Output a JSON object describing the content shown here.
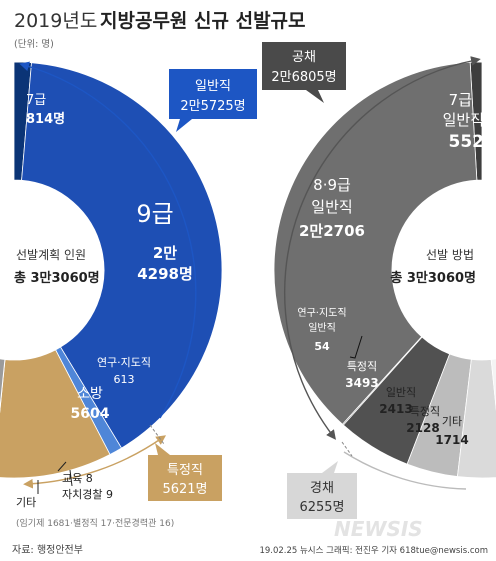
{
  "title": {
    "year": "2019년도",
    "main": "지방공무원 신규 선발규모"
  },
  "unit": "(단위: 명)",
  "left": {
    "center_label": "선발계획 인원",
    "center_total": "총 3만3060명",
    "callout_top": [
      "일반직",
      "2만5725명"
    ],
    "callout_bottom": [
      "특정직",
      "5621명"
    ],
    "labels": {
      "grade7": [
        "7급",
        "814명"
      ],
      "grade9": [
        "9급",
        "2만",
        "4298명"
      ],
      "research": [
        "연구·지도직",
        "613"
      ],
      "fire": [
        "소방",
        "5604"
      ],
      "education": "교육 8",
      "police": "자치경찰 9",
      "other": "기타",
      "other_note": "(임기제 1681·별정직 17·전문경력관 16)"
    }
  },
  "right": {
    "center_label": "선발 방법",
    "center_total": "총 3만3060명",
    "callout_top": [
      "공채",
      "2만6805명"
    ],
    "callout_bottom": [
      "경채",
      "6255명"
    ],
    "labels": {
      "grade7": [
        "7급",
        "일반직",
        "552"
      ],
      "grade89": [
        "8·9급",
        "일반직",
        "2만2706"
      ],
      "research": [
        "연구·지도직",
        "일반직",
        "54"
      ],
      "special": [
        "특정직",
        "3493"
      ],
      "general": [
        "일반직",
        "2413"
      ],
      "special2": [
        "특정직",
        "2128"
      ],
      "other": [
        "기타",
        "1714"
      ]
    }
  },
  "chart_data": [
    {
      "type": "pie",
      "center_label": "선발계획 인원",
      "total": 33060,
      "categories": [
        "7급",
        "9급",
        "연구·지도직",
        "특정직",
        "소방",
        "교육",
        "자치경찰",
        "기타"
      ],
      "values": [
        814,
        24298,
        613,
        0,
        5604,
        8,
        9,
        1714
      ],
      "groups": [
        {
          "name": "일반직",
          "value": 25725
        },
        {
          "name": "특정직",
          "value": 5621
        }
      ],
      "other_breakdown": [
        {
          "name": "임기제",
          "value": 1681
        },
        {
          "name": "별정직",
          "value": 17
        },
        {
          "name": "전문경력관",
          "value": 16
        }
      ]
    },
    {
      "type": "pie",
      "center_label": "선발 방법",
      "total": 33060,
      "categories": [
        "7급 일반직",
        "8·9급 일반직",
        "연구·지도직 일반직",
        "특정직",
        "일반직",
        "특정직",
        "기타"
      ],
      "values": [
        552,
        22706,
        54,
        3493,
        2413,
        2128,
        1714
      ],
      "groups": [
        {
          "name": "공채",
          "value": 26805
        },
        {
          "name": "경채",
          "value": 6255
        }
      ]
    }
  ],
  "colors": {
    "left_blue_dark": "#0b3476",
    "left_blue": "#1e4fb4",
    "left_blue_light": "#4f86d8",
    "left_tan": "#c9a162",
    "left_gray": "#9b9b9b",
    "right_dark": "#3e3e3e",
    "right_gray": "#6f6f6f",
    "right_mid": "#515151",
    "right_light": "#bcbcbc",
    "right_lighter": "#dadada",
    "callout_blue": "#1d56c4",
    "callout_tan": "#c9a162",
    "callout_dark": "#4a4a4a",
    "callout_gray": "#d7d7d7"
  },
  "footer": {
    "source": "자료: 행정안전부",
    "credit": "19.02.25  뉴시스 그래픽: 전진우 기자 618tue@newsis.com",
    "logo": "NEWSIS"
  }
}
